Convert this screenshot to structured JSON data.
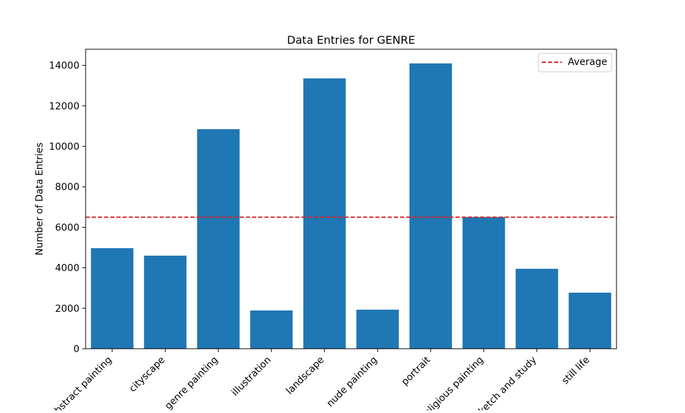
{
  "chart_data": {
    "type": "bar",
    "title": "Data Entries for GENRE",
    "xlabel": "",
    "ylabel": "Number of Data Entries",
    "categories": [
      "abstract painting",
      "cityscape",
      "genre painting",
      "illustration",
      "landscape",
      "nude painting",
      "portrait",
      "religious painting",
      "sketch and study",
      "still life"
    ],
    "values": [
      4970,
      4600,
      10850,
      1890,
      13360,
      1930,
      14100,
      6510,
      3950,
      2770
    ],
    "average": 6500,
    "ylim": [
      0,
      14800
    ],
    "yticks": [
      0,
      2000,
      4000,
      6000,
      8000,
      10000,
      12000,
      14000
    ],
    "legend": {
      "label": "Average",
      "placement": "top-right"
    },
    "grid": false,
    "colors": {
      "bar": "#1f77b4",
      "average_line": "#d62728"
    }
  }
}
